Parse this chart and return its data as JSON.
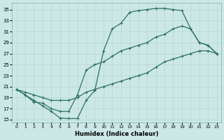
{
  "xlabel": "Humidex (Indice chaleur)",
  "bg_color": "#cce8e6",
  "grid_color": "#b8d8d4",
  "line_color": "#2e7060",
  "xlim": [
    -0.5,
    23.5
  ],
  "ylim": [
    14.5,
    36.2
  ],
  "xticks": [
    0,
    1,
    2,
    3,
    4,
    5,
    6,
    7,
    8,
    9,
    10,
    11,
    12,
    13,
    14,
    15,
    16,
    17,
    18,
    19,
    20,
    21,
    22,
    23
  ],
  "yticks": [
    15,
    17,
    19,
    21,
    23,
    25,
    27,
    29,
    31,
    33,
    35
  ],
  "c1x": [
    0,
    1,
    2,
    3,
    4,
    5,
    6,
    7,
    8,
    9,
    10,
    11,
    12,
    13,
    14,
    15,
    16,
    17,
    18,
    19,
    20,
    21,
    22,
    23
  ],
  "c1y": [
    20.5,
    19.5,
    18.5,
    17.5,
    16.5,
    15.3,
    15.2,
    15.2,
    18.5,
    20.3,
    27.5,
    31.5,
    32.5,
    34.5,
    34.8,
    35.0,
    35.2,
    35.2,
    35.0,
    34.8,
    31.5,
    29.0,
    28.5,
    27.0
  ],
  "c2x": [
    0,
    1,
    2,
    3,
    4,
    5,
    6,
    7,
    8,
    9,
    10,
    11,
    12,
    13,
    14,
    15,
    16,
    17,
    18,
    19,
    20,
    21,
    22,
    23
  ],
  "c2y": [
    20.5,
    19.5,
    18.2,
    18.0,
    17.0,
    16.5,
    16.5,
    19.5,
    24.0,
    25.0,
    25.5,
    26.5,
    27.5,
    28.0,
    28.5,
    29.0,
    30.0,
    30.5,
    31.5,
    32.0,
    31.5,
    29.0,
    28.5,
    27.0
  ],
  "c3x": [
    0,
    1,
    2,
    3,
    4,
    5,
    6,
    7,
    8,
    9,
    10,
    11,
    12,
    13,
    14,
    15,
    16,
    17,
    18,
    19,
    20,
    21,
    22,
    23
  ],
  "c3y": [
    20.5,
    20.0,
    19.5,
    19.0,
    18.5,
    18.5,
    18.5,
    19.0,
    20.0,
    20.5,
    21.0,
    21.5,
    22.0,
    22.5,
    23.0,
    23.5,
    24.5,
    25.5,
    26.0,
    26.5,
    27.0,
    27.5,
    27.5,
    27.0
  ]
}
